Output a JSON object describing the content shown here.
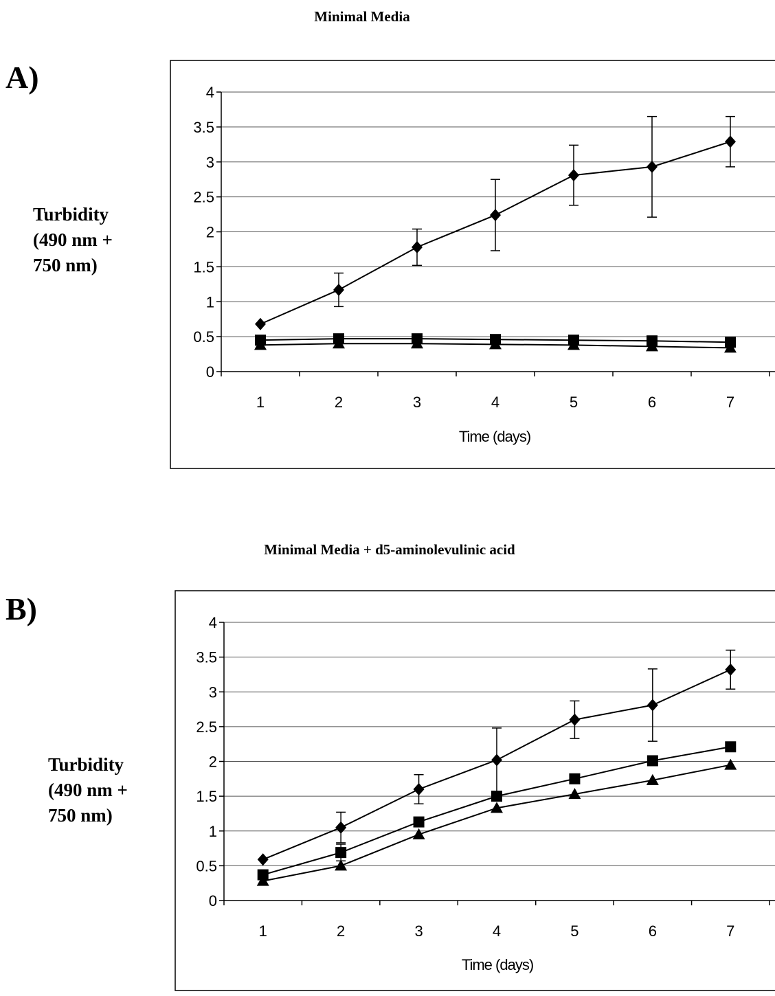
{
  "chart_data": [
    {
      "type": "line",
      "panel_label": "A)",
      "title": "Minimal Media",
      "xlabel": "Time (days)",
      "ylabel_lines": [
        "Turbidity",
        "(490 nm +",
        "750 nm)"
      ],
      "categories": [
        "1",
        "2",
        "3",
        "4",
        "5",
        "6",
        "7"
      ],
      "y_ticks": [
        "0",
        "0.5",
        "1",
        "1.5",
        "2",
        "2.5",
        "3",
        "3.5",
        "4"
      ],
      "ylim": [
        0,
        4
      ],
      "grid": true,
      "series": [
        {
          "marker": "diamond",
          "values": [
            0.68,
            1.17,
            1.78,
            2.24,
            2.81,
            2.93,
            3.29
          ],
          "errors": [
            0.04,
            0.24,
            0.26,
            0.51,
            0.43,
            0.72,
            0.36
          ]
        },
        {
          "marker": "square",
          "values": [
            0.45,
            0.47,
            0.47,
            0.46,
            0.45,
            0.44,
            0.42
          ],
          "errors": [
            0.02,
            0.02,
            0.02,
            0.02,
            0.02,
            0.02,
            0.02
          ]
        },
        {
          "marker": "triangle",
          "values": [
            0.38,
            0.4,
            0.4,
            0.39,
            0.38,
            0.36,
            0.34
          ],
          "errors": [
            0.02,
            0.02,
            0.02,
            0.02,
            0.02,
            0.02,
            0.02
          ]
        }
      ]
    },
    {
      "type": "line",
      "panel_label": "B)",
      "title": "Minimal Media + d5-aminolevulinic acid",
      "xlabel": "Time (days)",
      "ylabel_lines": [
        "Turbidity",
        "(490 nm +",
        "750 nm)"
      ],
      "categories": [
        "1",
        "2",
        "3",
        "4",
        "5",
        "6",
        "7"
      ],
      "y_ticks": [
        "0",
        "0.5",
        "1",
        "1.5",
        "2",
        "2.5",
        "3",
        "3.5",
        "4"
      ],
      "ylim": [
        0,
        4
      ],
      "grid": true,
      "series": [
        {
          "marker": "diamond",
          "values": [
            0.59,
            1.05,
            1.6,
            2.02,
            2.6,
            2.81,
            3.32
          ],
          "errors": [
            0.03,
            0.22,
            0.21,
            0.46,
            0.27,
            0.52,
            0.28
          ]
        },
        {
          "marker": "square",
          "values": [
            0.37,
            0.69,
            1.13,
            1.5,
            1.75,
            2.01,
            2.21
          ],
          "errors": [
            0.02,
            0.12,
            0.03,
            0.04,
            0.03,
            0.02,
            0.02
          ]
        },
        {
          "marker": "triangle",
          "values": [
            0.28,
            0.5,
            0.95,
            1.33,
            1.53,
            1.73,
            1.95
          ],
          "errors": [
            0.02,
            0.02,
            0.02,
            0.02,
            0.02,
            0.02,
            0.02
          ]
        }
      ]
    }
  ]
}
